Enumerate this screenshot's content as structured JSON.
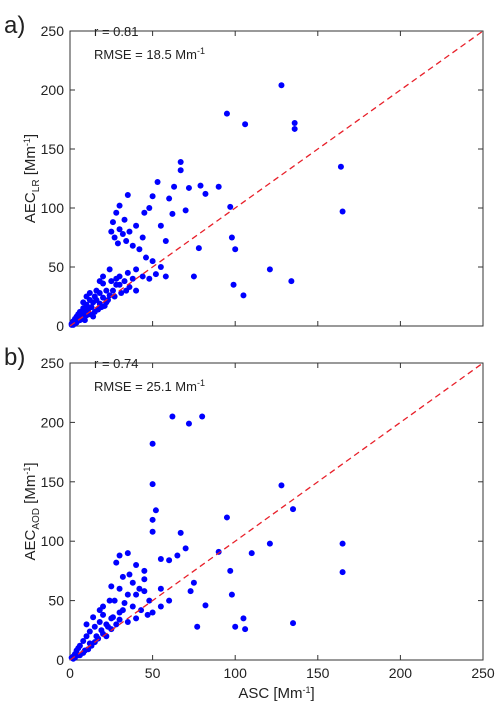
{
  "chart_data": [
    {
      "type": "scatter",
      "panel_label": "a)",
      "r_text": "r = 0.81",
      "rmse_text": [
        "RMSE = 18.5 Mm",
        "-1"
      ],
      "ylabel": [
        "AEC",
        "LR",
        " [Mm",
        "-1",
        "]"
      ],
      "xlim": [
        0,
        250
      ],
      "ylim": [
        0,
        250
      ],
      "xticks": [
        0,
        50,
        100,
        150,
        200,
        250
      ],
      "yticks": [
        0,
        50,
        100,
        150,
        200,
        250
      ],
      "show_xtick_labels": false,
      "color": "#0000ff",
      "reference_line": {
        "x": [
          0,
          250
        ],
        "y": [
          0,
          250
        ],
        "color": "#e8202a"
      },
      "x": [
        128,
        95,
        106,
        136,
        136,
        164,
        165,
        90,
        97,
        121,
        134,
        99,
        105,
        98,
        100,
        75,
        78,
        70,
        67,
        67,
        63,
        72,
        79,
        82,
        60,
        55,
        58,
        62,
        50,
        53,
        35,
        30,
        28,
        26,
        25,
        27,
        30,
        32,
        34,
        36,
        33,
        29,
        38,
        40,
        45,
        48,
        44,
        42,
        46,
        50,
        55,
        40,
        35,
        38,
        30,
        25,
        28,
        20,
        22,
        18,
        15,
        12,
        10,
        8,
        6,
        5,
        4,
        3,
        2,
        1,
        3,
        5,
        7,
        9,
        11,
        13,
        14,
        16,
        18,
        20,
        22,
        24,
        26,
        30,
        33,
        36,
        40,
        44,
        48,
        52,
        58,
        2,
        4,
        6,
        8,
        10,
        12,
        15,
        17,
        19,
        21,
        23,
        27,
        31,
        34,
        1,
        3,
        9,
        14,
        16,
        12,
        10,
        8,
        20,
        24,
        18,
        28
      ],
      "values": [
        204,
        180,
        171,
        172,
        167,
        135,
        97,
        118,
        101,
        48,
        38,
        35,
        26,
        75,
        65,
        42,
        66,
        98,
        139,
        132,
        118,
        117,
        119,
        112,
        108,
        85,
        72,
        95,
        110,
        122,
        111,
        102,
        96,
        88,
        80,
        75,
        82,
        78,
        72,
        80,
        90,
        70,
        68,
        85,
        96,
        100,
        75,
        65,
        58,
        55,
        50,
        48,
        45,
        40,
        42,
        38,
        35,
        36,
        30,
        28,
        25,
        22,
        18,
        15,
        12,
        10,
        8,
        6,
        4,
        2,
        3,
        6,
        9,
        11,
        14,
        16,
        20,
        22,
        19,
        24,
        20,
        26,
        30,
        35,
        38,
        33,
        30,
        42,
        40,
        44,
        42,
        1,
        3,
        5,
        7,
        9,
        10,
        12,
        14,
        16,
        17,
        22,
        25,
        28,
        30,
        1,
        2,
        5,
        8,
        30,
        28,
        25,
        20,
        42,
        48,
        38,
        40
      ]
    },
    {
      "type": "scatter",
      "panel_label": "b)",
      "r_text": "r = 0.74",
      "rmse_text": [
        "RMSE = 25.1 Mm",
        "-1"
      ],
      "ylabel": [
        "AEC",
        "AOD",
        " [Mm",
        "-1",
        "]"
      ],
      "xlabel": [
        "ASC  [Mm",
        "-1",
        "]"
      ],
      "xlim": [
        0,
        250
      ],
      "ylim": [
        0,
        250
      ],
      "xticks": [
        0,
        50,
        100,
        150,
        200,
        250
      ],
      "yticks": [
        0,
        50,
        100,
        150,
        200,
        250
      ],
      "show_xtick_labels": true,
      "color": "#0000ff",
      "reference_line": {
        "x": [
          0,
          250
        ],
        "y": [
          0,
          250
        ],
        "color": "#e8202a"
      },
      "x": [
        62,
        80,
        72,
        50,
        50,
        52,
        50,
        50,
        55,
        60,
        67,
        70,
        65,
        75,
        73,
        82,
        77,
        90,
        95,
        97,
        98,
        100,
        106,
        105,
        110,
        121,
        128,
        135,
        135,
        165,
        165,
        45,
        40,
        35,
        30,
        28,
        32,
        36,
        38,
        42,
        45,
        48,
        40,
        35,
        30,
        25,
        27,
        33,
        38,
        43,
        47,
        50,
        55,
        30,
        25,
        20,
        22,
        18,
        15,
        12,
        10,
        8,
        6,
        5,
        4,
        3,
        2,
        1,
        3,
        6,
        8,
        11,
        13,
        15,
        17,
        20,
        22,
        25,
        28,
        30,
        35,
        40,
        20,
        24,
        18,
        10,
        14,
        2,
        5,
        9,
        12,
        16,
        19,
        23,
        26,
        32,
        55,
        45,
        60
      ],
      "values": [
        205,
        205,
        199,
        182,
        148,
        126,
        118,
        108,
        85,
        84,
        107,
        94,
        88,
        65,
        58,
        46,
        28,
        91,
        120,
        75,
        55,
        28,
        26,
        35,
        90,
        98,
        147,
        127,
        31,
        98,
        74,
        75,
        80,
        90,
        88,
        82,
        70,
        72,
        65,
        60,
        58,
        50,
        55,
        55,
        60,
        62,
        50,
        48,
        45,
        42,
        38,
        40,
        45,
        40,
        35,
        38,
        30,
        32,
        28,
        24,
        20,
        16,
        12,
        10,
        8,
        5,
        3,
        2,
        2,
        4,
        6,
        9,
        12,
        15,
        18,
        22,
        20,
        26,
        30,
        34,
        32,
        35,
        45,
        50,
        42,
        30,
        36,
        1,
        4,
        8,
        14,
        20,
        25,
        28,
        36,
        42,
        60,
        68,
        50
      ]
    }
  ]
}
